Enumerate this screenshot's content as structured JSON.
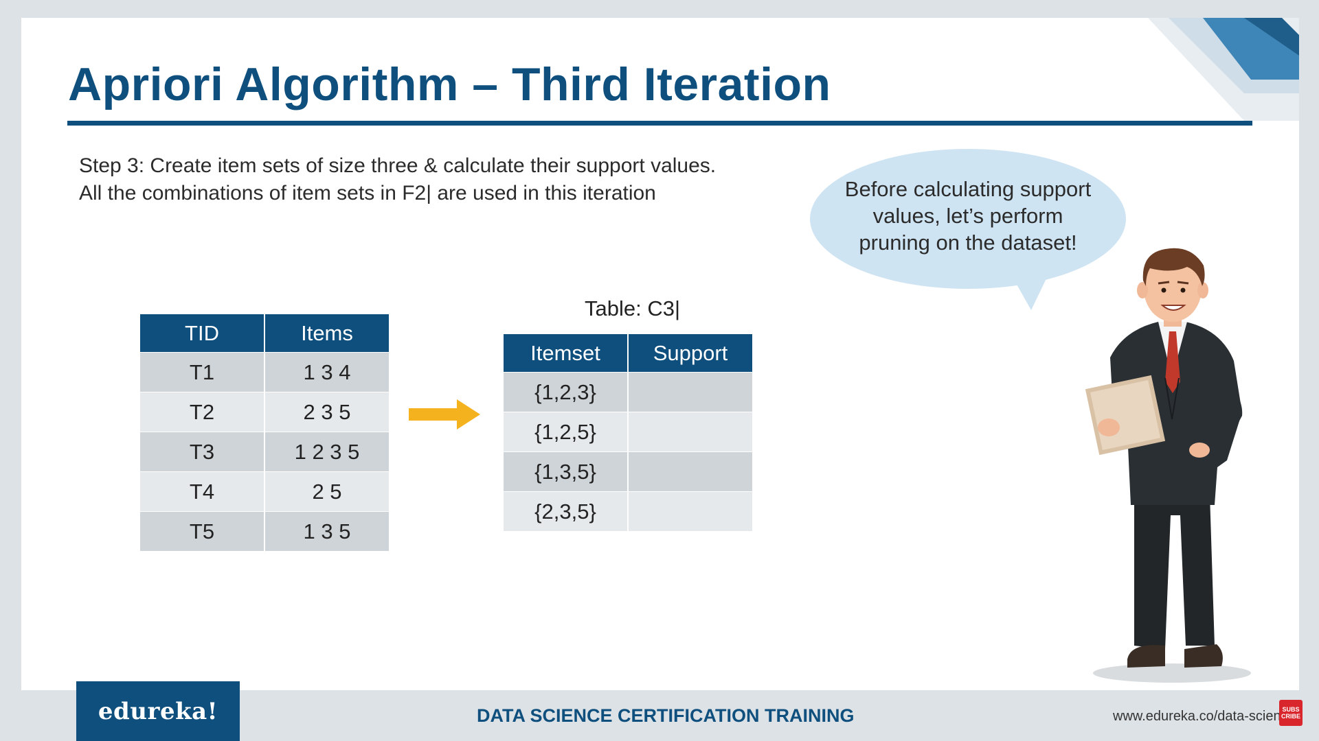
{
  "slide": {
    "title": "Apriori Algorithm – Third Iteration",
    "step_line_1": "Step 3: Create item sets of size three & calculate their support values.",
    "step_line_2": "All the combinations of item sets in F2| are used in this iteration"
  },
  "transactions_table": {
    "headers": [
      "TID",
      "Items"
    ],
    "rows": [
      [
        "T1",
        "1 3 4"
      ],
      [
        "T2",
        "2 3 5"
      ],
      [
        "T3",
        "1 2 3 5"
      ],
      [
        "T4",
        "2 5"
      ],
      [
        "T5",
        "1 3 5"
      ]
    ]
  },
  "c3_table": {
    "caption": "Table: C3|",
    "headers": [
      "Itemset",
      "Support"
    ],
    "rows": [
      [
        "{1,2,3}",
        ""
      ],
      [
        "{1,2,5}",
        ""
      ],
      [
        "{1,3,5}",
        ""
      ],
      [
        "{2,3,5}",
        ""
      ]
    ]
  },
  "speech_bubble": {
    "line_1": "Before calculating support",
    "line_2": "values, let’s perform",
    "line_3": "pruning on the dataset!"
  },
  "footer": {
    "logo": "edureka!",
    "course_title": "DATA SCIENCE CERTIFICATION TRAINING",
    "url": "www.edureka.co/data-science",
    "subscribe_line_1": "SUBS",
    "subscribe_line_2": "CRIBE"
  },
  "colors": {
    "brand_blue": "#0e4f7e",
    "row_dark": "#cfd4d8",
    "row_light": "#e6e9ec",
    "arrow": "#f5b21f",
    "bubble": "#cfe4f3",
    "subscribe_red": "#d9262c"
  },
  "icons": {
    "arrow": "right-arrow-icon",
    "character": "businessman-illustration",
    "corner": "corner-stripes-decoration"
  }
}
